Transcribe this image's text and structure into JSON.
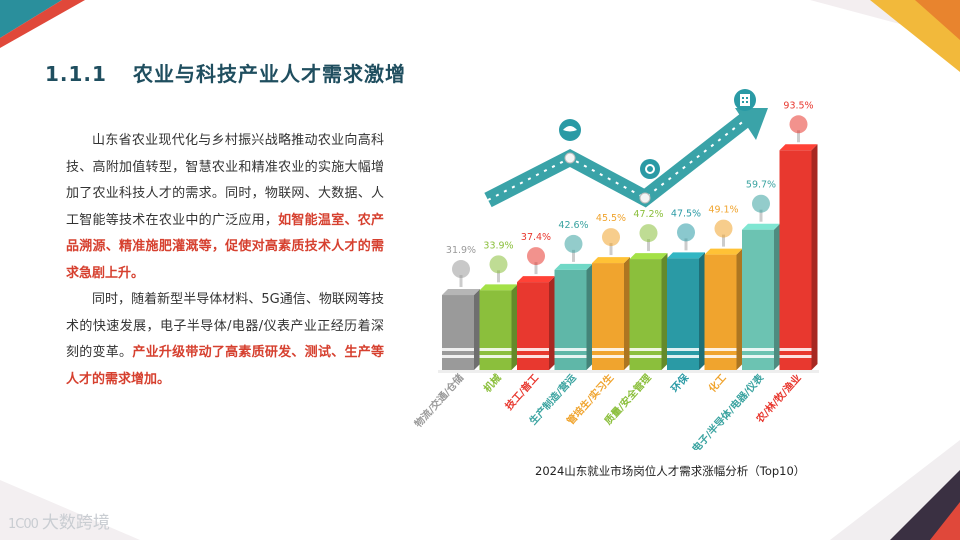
{
  "heading": {
    "number": "1.1.1",
    "text": "农业与科技产业人才需求激增"
  },
  "paragraph1": {
    "normal": "山东省农业现代化与乡村振兴战略推动农业向高科技、高附加值转型，智慧农业和精准农业的实施大幅增加了农业科技人才的需求。同时，物联网、大数据、人工智能等技术在农业中的广泛应用，",
    "highlight": "如智能温室、农产品溯源、精准施肥灌溉等，促使对高素质技术人才的需求急剧上升。"
  },
  "paragraph2": {
    "normal": "同时，随着新型半导体材料、5G通信、物联网等技术的快速发展，电子半导体/电器/仪表产业正经历着深刻的变革。",
    "highlight": "产业升级带动了高素质研发、测试、生产等人才的需求增加。"
  },
  "caption": "2024山东就业市场岗位人才需求涨幅分析（Top10）",
  "logo": {
    "symbol": "1C00",
    "text": "大数跨境"
  },
  "colors": {
    "teal": "#2a9aa5",
    "red": "#e8382f",
    "orange": "#f0a42e",
    "green": "#8bbf3c",
    "gray": "#9a9a9a",
    "heading": "#1f4e5f",
    "highlight": "#d6402f"
  },
  "chart_data": {
    "type": "bar",
    "title": "2024山东就业市场岗位人才需求涨幅分析（Top10）",
    "categories": [
      "物流/交通/仓储",
      "机械",
      "技工/普工",
      "生产制造/营运",
      "管培生/实习生",
      "质量/安全管理",
      "环保",
      "化工",
      "电子/半导体/电器/仪表",
      "农/林/牧/渔业"
    ],
    "values": [
      31.9,
      33.9,
      37.4,
      42.6,
      45.5,
      47.2,
      47.5,
      49.1,
      59.7,
      93.5
    ],
    "value_labels": [
      "31.9%",
      "33.9%",
      "37.4%",
      "42.6%",
      "45.5%",
      "47.2%",
      "47.5%",
      "49.1%",
      "59.7%",
      "93.5%"
    ],
    "bar_colors": [
      "#9a9a9a",
      "#8bbf3c",
      "#e8382f",
      "#5fb7a8",
      "#f0a42e",
      "#8bbf3c",
      "#2a9aa5",
      "#f0a42e",
      "#6cc3b2",
      "#e8382f"
    ],
    "label_colors": [
      "#9a9a9a",
      "#8bbf3c",
      "#e8382f",
      "#3aa3a0",
      "#f0a42e",
      "#8bbf3c",
      "#2a9aa5",
      "#f0a42e",
      "#3aa3a0",
      "#e8382f"
    ],
    "ylim": [
      0,
      100
    ],
    "grid": false,
    "legend": "none"
  }
}
